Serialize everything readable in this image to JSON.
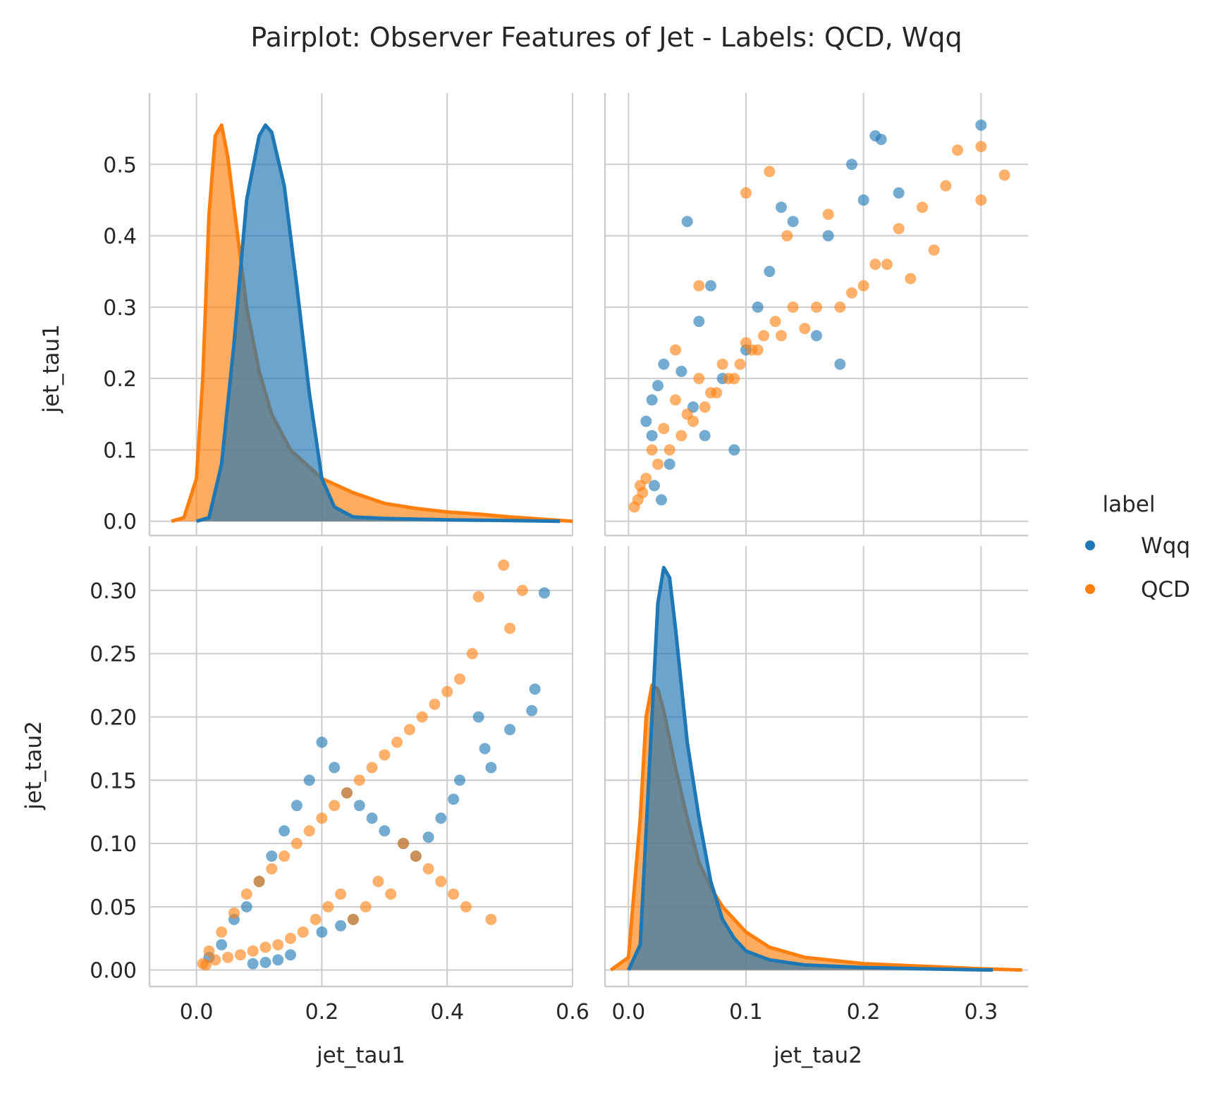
{
  "title": "Pairplot: Observer Features of Jet - Labels: QCD, Wqq",
  "legend": {
    "title": "label",
    "placement": "center-right",
    "items": [
      {
        "label": "Wqq",
        "color": "#1f77b4"
      },
      {
        "label": "QCD",
        "color": "#ff7f0e"
      }
    ]
  },
  "colors": {
    "Wqq": "#1f77b4",
    "QCD": "#ff7f0e",
    "grid": "#cccccc"
  },
  "chart_data": [
    {
      "type": "area",
      "panel": "jet_tau1-vs-jet_tau1",
      "xlabel": "",
      "ylabel": "jet_tau1",
      "xlim": [
        -0.075,
        0.6
      ],
      "ylim": [
        -0.02,
        0.6
      ],
      "yticks": [
        "0.0",
        "0.1",
        "0.2",
        "0.3",
        "0.4",
        "0.5"
      ],
      "grid": true,
      "series": [
        {
          "name": "Wqq",
          "x": [
            0.0,
            0.02,
            0.04,
            0.06,
            0.08,
            0.1,
            0.11,
            0.12,
            0.14,
            0.16,
            0.18,
            0.2,
            0.22,
            0.25,
            0.3,
            0.4,
            0.5,
            0.58
          ],
          "y": [
            0.0,
            0.005,
            0.08,
            0.25,
            0.45,
            0.54,
            0.555,
            0.545,
            0.47,
            0.33,
            0.18,
            0.06,
            0.02,
            0.006,
            0.004,
            0.002,
            0.001,
            0.0
          ]
        },
        {
          "name": "QCD",
          "x": [
            -0.04,
            -0.02,
            0.0,
            0.01,
            0.02,
            0.03,
            0.04,
            0.05,
            0.06,
            0.08,
            0.1,
            0.12,
            0.15,
            0.2,
            0.25,
            0.3,
            0.35,
            0.4,
            0.45,
            0.5,
            0.55,
            0.6
          ],
          "y": [
            0.0,
            0.005,
            0.06,
            0.2,
            0.43,
            0.54,
            0.555,
            0.51,
            0.44,
            0.3,
            0.21,
            0.15,
            0.1,
            0.06,
            0.04,
            0.025,
            0.018,
            0.013,
            0.01,
            0.006,
            0.003,
            0.0
          ]
        }
      ]
    },
    {
      "type": "scatter",
      "panel": "jet_tau1-vs-jet_tau2",
      "xlabel": "",
      "ylabel": "",
      "xlim": [
        -0.02,
        0.34
      ],
      "ylim": [
        -0.02,
        0.6
      ],
      "grid": true,
      "series": [
        {
          "name": "Wqq",
          "x": [
            0.21,
            0.3,
            0.215,
            0.19,
            0.2,
            0.23,
            0.13,
            0.14,
            0.17,
            0.05,
            0.07,
            0.12,
            0.11,
            0.06,
            0.02,
            0.015,
            0.02,
            0.025,
            0.03,
            0.045,
            0.055,
            0.08,
            0.1,
            0.16,
            0.18,
            0.09,
            0.035,
            0.022,
            0.028,
            0.065
          ],
          "y": [
            0.54,
            0.555,
            0.535,
            0.5,
            0.45,
            0.46,
            0.44,
            0.42,
            0.4,
            0.42,
            0.33,
            0.35,
            0.3,
            0.28,
            0.17,
            0.14,
            0.12,
            0.19,
            0.22,
            0.21,
            0.16,
            0.2,
            0.24,
            0.26,
            0.22,
            0.1,
            0.08,
            0.05,
            0.03,
            0.12
          ]
        },
        {
          "name": "QCD",
          "x": [
            0.3,
            0.32,
            0.3,
            0.28,
            0.27,
            0.25,
            0.23,
            0.26,
            0.22,
            0.2,
            0.18,
            0.15,
            0.1,
            0.08,
            0.06,
            0.04,
            0.03,
            0.02,
            0.01,
            0.005,
            0.05,
            0.07,
            0.09,
            0.11,
            0.13,
            0.16,
            0.19,
            0.21,
            0.24,
            0.035,
            0.045,
            0.055,
            0.065,
            0.075,
            0.085,
            0.095,
            0.105,
            0.115,
            0.125,
            0.14,
            0.025,
            0.015,
            0.012,
            0.008,
            0.1,
            0.12,
            0.17,
            0.135,
            0.06,
            0.04
          ],
          "y": [
            0.525,
            0.485,
            0.45,
            0.52,
            0.47,
            0.44,
            0.41,
            0.38,
            0.36,
            0.33,
            0.3,
            0.27,
            0.25,
            0.22,
            0.2,
            0.17,
            0.13,
            0.1,
            0.05,
            0.02,
            0.15,
            0.18,
            0.2,
            0.24,
            0.26,
            0.3,
            0.32,
            0.36,
            0.34,
            0.1,
            0.12,
            0.14,
            0.16,
            0.18,
            0.2,
            0.22,
            0.24,
            0.26,
            0.28,
            0.3,
            0.08,
            0.06,
            0.04,
            0.03,
            0.46,
            0.49,
            0.43,
            0.4,
            0.33,
            0.24
          ]
        }
      ]
    },
    {
      "type": "scatter",
      "panel": "jet_tau2-vs-jet_tau1",
      "xlabel": "jet_tau1",
      "ylabel": "jet_tau2",
      "xlim": [
        -0.075,
        0.6
      ],
      "ylim": [
        -0.013,
        0.335
      ],
      "xticks": [
        "0.0",
        "0.2",
        "0.4",
        "0.6"
      ],
      "yticks": [
        "0.00",
        "0.05",
        "0.10",
        "0.15",
        "0.20",
        "0.25",
        "0.30"
      ],
      "grid": true,
      "series": [
        {
          "name": "Wqq",
          "x": [
            0.555,
            0.54,
            0.535,
            0.5,
            0.46,
            0.45,
            0.47,
            0.42,
            0.41,
            0.39,
            0.37,
            0.35,
            0.33,
            0.3,
            0.28,
            0.26,
            0.24,
            0.22,
            0.2,
            0.18,
            0.16,
            0.14,
            0.12,
            0.1,
            0.08,
            0.06,
            0.04,
            0.02,
            0.2,
            0.23,
            0.25,
            0.15,
            0.13,
            0.11,
            0.09
          ],
          "y": [
            0.298,
            0.222,
            0.205,
            0.19,
            0.175,
            0.2,
            0.16,
            0.15,
            0.135,
            0.12,
            0.105,
            0.09,
            0.1,
            0.11,
            0.12,
            0.13,
            0.14,
            0.16,
            0.18,
            0.15,
            0.13,
            0.11,
            0.09,
            0.07,
            0.05,
            0.04,
            0.02,
            0.01,
            0.03,
            0.035,
            0.04,
            0.012,
            0.008,
            0.006,
            0.005
          ]
        },
        {
          "name": "QCD",
          "x": [
            0.49,
            0.52,
            0.5,
            0.45,
            0.44,
            0.42,
            0.4,
            0.38,
            0.36,
            0.34,
            0.32,
            0.3,
            0.28,
            0.26,
            0.24,
            0.22,
            0.2,
            0.18,
            0.16,
            0.14,
            0.12,
            0.1,
            0.08,
            0.06,
            0.04,
            0.02,
            0.01,
            0.47,
            0.43,
            0.41,
            0.39,
            0.37,
            0.35,
            0.33,
            0.31,
            0.29,
            0.27,
            0.25,
            0.23,
            0.21,
            0.19,
            0.17,
            0.15,
            0.13,
            0.11,
            0.09,
            0.07,
            0.05,
            0.03,
            0.015
          ],
          "y": [
            0.32,
            0.3,
            0.27,
            0.295,
            0.25,
            0.23,
            0.22,
            0.21,
            0.2,
            0.19,
            0.18,
            0.17,
            0.16,
            0.15,
            0.14,
            0.13,
            0.12,
            0.11,
            0.1,
            0.09,
            0.08,
            0.07,
            0.06,
            0.045,
            0.03,
            0.015,
            0.005,
            0.04,
            0.05,
            0.06,
            0.07,
            0.08,
            0.09,
            0.1,
            0.06,
            0.07,
            0.05,
            0.04,
            0.06,
            0.05,
            0.04,
            0.03,
            0.025,
            0.02,
            0.018,
            0.015,
            0.012,
            0.01,
            0.008,
            0.004
          ]
        }
      ]
    },
    {
      "type": "area",
      "panel": "jet_tau2-vs-jet_tau2",
      "xlabel": "jet_tau2",
      "ylabel": "",
      "xlim": [
        -0.02,
        0.34
      ],
      "ylim": [
        -0.013,
        0.335
      ],
      "xticks": [
        "0.0",
        "0.1",
        "0.2",
        "0.3"
      ],
      "grid": true,
      "series": [
        {
          "name": "Wqq",
          "x": [
            0.0,
            0.01,
            0.02,
            0.025,
            0.03,
            0.035,
            0.04,
            0.05,
            0.06,
            0.07,
            0.08,
            0.09,
            0.1,
            0.12,
            0.15,
            0.2,
            0.25,
            0.31
          ],
          "y": [
            0.0,
            0.02,
            0.2,
            0.29,
            0.318,
            0.31,
            0.27,
            0.18,
            0.12,
            0.07,
            0.04,
            0.025,
            0.015,
            0.008,
            0.004,
            0.002,
            0.001,
            0.0
          ]
        },
        {
          "name": "QCD",
          "x": [
            -0.015,
            0.0,
            0.01,
            0.015,
            0.02,
            0.025,
            0.03,
            0.04,
            0.05,
            0.06,
            0.07,
            0.08,
            0.1,
            0.12,
            0.15,
            0.2,
            0.25,
            0.3,
            0.335
          ],
          "y": [
            0.0,
            0.01,
            0.12,
            0.2,
            0.225,
            0.222,
            0.205,
            0.16,
            0.12,
            0.085,
            0.065,
            0.05,
            0.03,
            0.018,
            0.01,
            0.005,
            0.003,
            0.001,
            0.0
          ]
        }
      ]
    }
  ]
}
